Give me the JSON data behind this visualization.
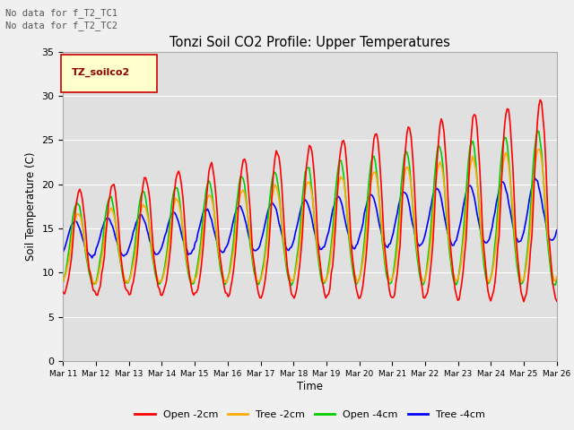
{
  "title": "Tonzi Soil CO2 Profile: Upper Temperatures",
  "ylabel": "Soil Temperature (C)",
  "xlabel": "Time",
  "annotations": [
    "No data for f_T2_TC1",
    "No data for f_T2_TC2"
  ],
  "legend_label": "TZ_soilco2",
  "legend_lines": [
    "Open -2cm",
    "Tree -2cm",
    "Open -4cm",
    "Tree -4cm"
  ],
  "legend_colors": [
    "#ff0000",
    "#ffaa00",
    "#00cc00",
    "#0000ff"
  ],
  "ylim": [
    0,
    35
  ],
  "ytick_values": [
    0,
    5,
    10,
    15,
    20,
    25,
    30,
    35
  ],
  "xtick_labels": [
    "Mar 11",
    "Mar 12",
    "Mar 13",
    "Mar 14",
    "Mar 15",
    "Mar 16",
    "Mar 17",
    "Mar 18",
    "Mar 19",
    "Mar 20",
    "Mar 21",
    "Mar 22",
    "Mar 23",
    "Mar 24",
    "Mar 25",
    "Mar 26"
  ],
  "plot_bg_color": "#e0e0e0",
  "fig_bg_color": "#f0f0f0",
  "line_colors": [
    "#ff0000",
    "#ffaa00",
    "#00cc00",
    "#0000ff"
  ],
  "line_width": 1.2,
  "n_points": 360
}
